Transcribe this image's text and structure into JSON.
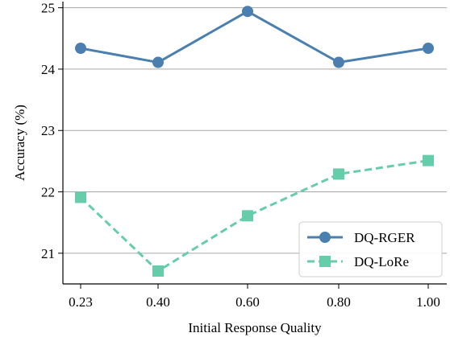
{
  "chart_data": {
    "type": "line",
    "title": "",
    "xlabel": "Initial Response Quality",
    "ylabel": "Accuracy (%)",
    "categories": [
      "0.23",
      "0.40",
      "0.60",
      "0.80",
      "1.00"
    ],
    "ylim": [
      20.5,
      25.1
    ],
    "yticks": [
      "21",
      "22",
      "23",
      "24",
      "25"
    ],
    "grid": "horizontal",
    "legend_position": "bottom-right",
    "series": [
      {
        "name": "DQ-RGER",
        "values": [
          24.34,
          24.11,
          24.94,
          24.11,
          24.34
        ],
        "color": "#4a7fb0",
        "marker": "circle",
        "line_style": "solid"
      },
      {
        "name": "DQ-LoRe",
        "values": [
          21.91,
          20.71,
          21.61,
          22.29,
          22.51
        ],
        "color": "#66cdaa",
        "marker": "square",
        "line_style": "dashed"
      }
    ]
  }
}
